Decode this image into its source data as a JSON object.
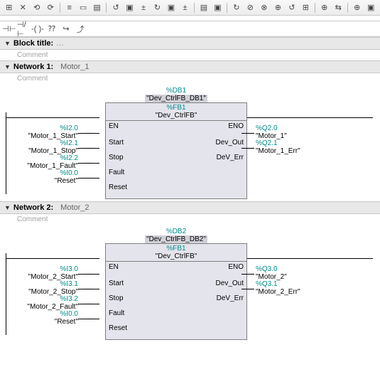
{
  "toolbar1": [
    "⊞",
    "✕",
    "⟲",
    "⟳",
    "|",
    "≡",
    "▭",
    "▤",
    "|",
    "↺",
    "▣",
    "±",
    "↻",
    "▣",
    "±",
    "|",
    "▤",
    "▣",
    "|",
    "↻",
    "⊘",
    "⊗",
    "⊕",
    "↺",
    "⊞",
    "|",
    "⊕",
    "⇆",
    "|",
    "⊕",
    "▣"
  ],
  "toolbar2": [
    "⊣⊢",
    "⊣/⊢",
    "-( )-",
    "⁇",
    "↪",
    "⤴"
  ],
  "block": {
    "label": "Block title:",
    "dots": "…"
  },
  "comment": "Comment",
  "net1": {
    "title": "Network 1:",
    "name": "Motor_1",
    "db_addr": "%DB1",
    "db_name": "\"Dev_CtrlFB_DB1\"",
    "fb_addr": "%FB1",
    "fb_name": "\"Dev_CtrlFB\"",
    "en": "EN",
    "eno": "ENO",
    "left_pins": [
      "Start",
      "Stop",
      "Fault",
      "Reset"
    ],
    "right_pins": [
      "Dev_Out",
      "DeV_Err"
    ],
    "left_sigs": [
      {
        "addr": "%I2.0",
        "tag": "\"Motor_1_Start\""
      },
      {
        "addr": "%I2.1",
        "tag": "\"Motor_1_Stop\""
      },
      {
        "addr": "%I2.2",
        "tag": "\"Motor_1_Fault\""
      },
      {
        "addr": "%I0.0",
        "tag": "\"Reset\""
      }
    ],
    "right_sigs": [
      {
        "addr": "%Q2.0",
        "tag": "\"Motor_1\""
      },
      {
        "addr": "%Q2.1",
        "tag": "\"Motor_1_Err\""
      }
    ]
  },
  "net2": {
    "title": "Network 2:",
    "name": "Motor_2",
    "db_addr": "%DB2",
    "db_name": "\"Dev_CtrlFB_DB2\"",
    "fb_addr": "%FB1",
    "fb_name": "\"Dev_CtrlFB\"",
    "en": "EN",
    "eno": "ENO",
    "left_pins": [
      "Start",
      "Stop",
      "Fault",
      "Reset"
    ],
    "right_pins": [
      "Dev_Out",
      "DeV_Err"
    ],
    "left_sigs": [
      {
        "addr": "%I3.0",
        "tag": "\"Motor_2_Start\""
      },
      {
        "addr": "%I3.1",
        "tag": "\"Motor_2_Stop\""
      },
      {
        "addr": "%I3.2",
        "tag": "\"Motor_2_Fault\""
      },
      {
        "addr": "%I0.0",
        "tag": "\"Reset\""
      }
    ],
    "right_sigs": [
      {
        "addr": "%Q3.0",
        "tag": "\"Motor_2\""
      },
      {
        "addr": "%Q3.1",
        "tag": "\"Motor_2_Err\""
      }
    ]
  },
  "colors": {
    "teal": "#008b8b",
    "block_bg": "#e4e4ec",
    "hdr_bg": "#e8e8e8"
  }
}
